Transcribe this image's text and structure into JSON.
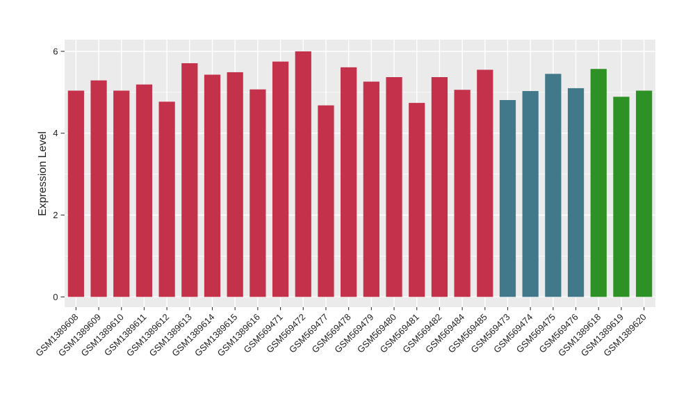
{
  "chart_data": {
    "type": "bar",
    "title": "",
    "xlabel": "",
    "ylabel": "Expression Level",
    "ylim": [
      0,
      6.3
    ],
    "y_ticks": [
      0,
      2,
      4,
      6
    ],
    "y_minor_ticks": [
      1,
      3,
      5
    ],
    "grid": "on",
    "legend": "none",
    "categories": [
      "GSM1389608",
      "GSM1389609",
      "GSM1389610",
      "GSM1389611",
      "GSM1389612",
      "GSM1389613",
      "GSM1389614",
      "GSM1389615",
      "GSM1389616",
      "GSM569471",
      "GSM569472",
      "GSM569477",
      "GSM569478",
      "GSM569479",
      "GSM569480",
      "GSM569481",
      "GSM569482",
      "GSM569484",
      "GSM569485",
      "GSM569473",
      "GSM569474",
      "GSM569475",
      "GSM569476",
      "GSM1389618",
      "GSM1389619",
      "GSM1389620"
    ],
    "values": [
      5.04,
      5.29,
      5.04,
      5.19,
      4.77,
      5.71,
      5.43,
      5.49,
      5.07,
      5.75,
      6.0,
      4.68,
      5.61,
      5.26,
      5.37,
      4.74,
      5.37,
      5.06,
      5.55,
      4.81,
      5.03,
      5.45,
      5.1,
      5.57,
      4.89,
      5.04
    ],
    "bar_colors": [
      "#C4314B",
      "#C4314B",
      "#C4314B",
      "#C4314B",
      "#C4314B",
      "#C4314B",
      "#C4314B",
      "#C4314B",
      "#C4314B",
      "#C4314B",
      "#C4314B",
      "#C4314B",
      "#C4314B",
      "#C4314B",
      "#C4314B",
      "#C4314B",
      "#C4314B",
      "#C4314B",
      "#C4314B",
      "#42798A",
      "#42798A",
      "#42798A",
      "#42798A",
      "#2E9125",
      "#2E9125",
      "#2E9125"
    ],
    "colors": {
      "page_bg": "#FFFFFF",
      "panel_bg": "#EBEBEB",
      "grid": "#FFFFFF",
      "axis_text": "#1E1E1E",
      "tick_mark": "#333333"
    }
  }
}
